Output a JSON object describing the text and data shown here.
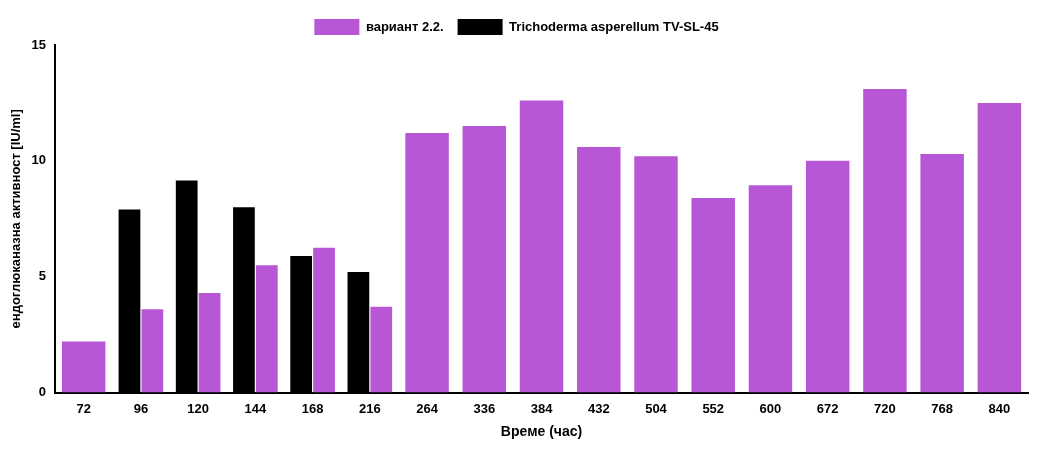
{
  "chart_data": {
    "type": "bar",
    "xlabel": "Време (час)",
    "ylabel": "ендоглюканазна активност [IU/ml]",
    "categories": [
      "72",
      "96",
      "120",
      "144",
      "168",
      "216",
      "264",
      "336",
      "384",
      "432",
      "504",
      "552",
      "600",
      "672",
      "720",
      "768",
      "840"
    ],
    "series": [
      {
        "name": "Trichoderma asperellum TV-SL-45",
        "color": "#000000",
        "values": [
          null,
          7.9,
          9.15,
          8.0,
          5.9,
          5.2,
          null,
          null,
          null,
          null,
          null,
          null,
          null,
          null,
          null,
          null,
          null
        ]
      },
      {
        "name": "вариант 2.2.",
        "color": "#b857d6",
        "values": [
          2.2,
          3.6,
          4.3,
          5.5,
          6.25,
          3.7,
          11.2,
          11.5,
          12.6,
          10.6,
          10.2,
          8.4,
          8.95,
          10.0,
          13.1,
          10.3,
          12.5
        ]
      }
    ],
    "ylim": [
      0,
      15
    ],
    "yticks": [
      0,
      5,
      10,
      15
    ],
    "grid": false,
    "legend": "top"
  }
}
